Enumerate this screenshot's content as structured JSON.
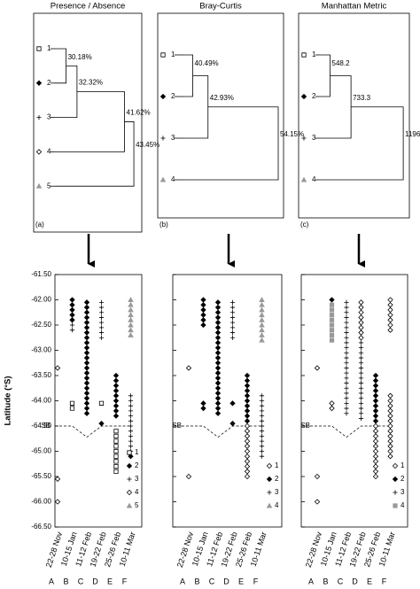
{
  "chart_data": [
    {
      "type": "dendrogram",
      "title": "Presence / Absence",
      "panel_label": "(a)",
      "leaves": [
        "1",
        "2",
        "3",
        "4",
        "5"
      ],
      "leaf_markers": [
        "square",
        "filled-diamond",
        "plus",
        "open-diamond",
        "triangle"
      ],
      "leaf_colors": [
        "#000000",
        "#000000",
        "#000000",
        "#000000",
        "#999999"
      ],
      "values": [
        30.18,
        32.32,
        41.62,
        43.45
      ],
      "value_labels": [
        "30.18%",
        "32.32%",
        "41.62%",
        "43.45%"
      ],
      "xlim": [
        28,
        45
      ]
    },
    {
      "type": "dendrogram",
      "title": "Bray-Curtis",
      "panel_label": "(b)",
      "leaves": [
        "1",
        "2",
        "3",
        "4"
      ],
      "leaf_markers": [
        "square",
        "filled-diamond",
        "plus",
        "triangle"
      ],
      "leaf_colors": [
        "#000000",
        "#000000",
        "#000000",
        "#999999"
      ],
      "values": [
        40.49,
        42.93,
        54.15
      ],
      "value_labels": [
        "40.49%",
        "42.93%",
        "54.15%"
      ],
      "xlim": [
        39,
        55
      ]
    },
    {
      "type": "dendrogram",
      "title": "Manhattan Metric",
      "panel_label": "(c)",
      "leaves": [
        "1",
        "2",
        "3",
        "4"
      ],
      "leaf_markers": [
        "square",
        "filled-diamond",
        "plus",
        "triangle"
      ],
      "leaf_colors": [
        "#000000",
        "#000000",
        "#000000",
        "#999999"
      ],
      "values": [
        548.2,
        733.3,
        1196.0
      ],
      "value_labels": [
        "548.2",
        "733.3",
        "1196.0"
      ],
      "xlim": [
        450,
        1250
      ]
    },
    {
      "type": "strip",
      "ylabel": "Latitude (°S)",
      "ylim": [
        -66.5,
        -61.5
      ],
      "yticks": [
        {
          "value": -61.5,
          "label": "-61.50"
        },
        {
          "value": -62,
          "label": "-62.00"
        },
        {
          "value": -62.5,
          "label": "-62.50"
        },
        {
          "value": -63,
          "label": "-63.00"
        },
        {
          "value": -63.5,
          "label": "-63.50"
        },
        {
          "value": -64,
          "label": "-64.00"
        },
        {
          "value": -64.5,
          "label": "-64.50"
        },
        {
          "value": -65,
          "label": "-65.00"
        },
        {
          "value": -65.5,
          "label": "-65.50"
        },
        {
          "value": -66,
          "label": "-66.00"
        },
        {
          "value": -66.5,
          "label": "-66.50"
        }
      ],
      "categories": [
        "22-28 Nov",
        "10-15 Jan",
        "11-12 Feb",
        "19-22 Feb",
        "25-26 Feb",
        "10-11 Mar"
      ],
      "letters": [
        "A",
        "B",
        "C",
        "D",
        "E",
        "F"
      ],
      "boundary": {
        "label": "SB",
        "values": [
          -64.5,
          -64.5,
          -64.72,
          -64.5,
          -64.5,
          -64.5
        ]
      },
      "legend": "lower right",
      "series": [
        {
          "name": "1",
          "marker": "square",
          "color": "#000000",
          "values": [
            [],
            [
              -64.05,
              -64.15
            ],
            [],
            [
              -64.05
            ],
            [
              -64.6,
              -64.7,
              -64.8,
              -64.9,
              -65.0,
              -65.1,
              -65.2,
              -65.3,
              -65.4
            ],
            []
          ]
        },
        {
          "name": "2",
          "marker": "filled-diamond",
          "color": "#000000",
          "values": [
            [],
            [
              -62.0,
              -62.1,
              -62.2,
              -62.3,
              -62.4
            ],
            [
              -62.05,
              -62.15,
              -62.25,
              -62.35,
              -62.45,
              -62.55,
              -62.65,
              -62.75,
              -62.85,
              -62.95,
              -63.05,
              -63.15,
              -63.25,
              -63.35,
              -63.45,
              -63.55,
              -63.65,
              -63.75,
              -63.85,
              -63.95,
              -64.05,
              -64.15,
              -64.25
            ],
            [
              -64.45
            ],
            [
              -63.5,
              -63.6,
              -63.7,
              -63.8,
              -63.9,
              -64.0,
              -64.1,
              -64.2,
              -64.3
            ],
            [
              -65.1
            ]
          ]
        },
        {
          "name": "3",
          "marker": "plus",
          "color": "#000000",
          "values": [
            [],
            [
              -62.5,
              -62.6
            ],
            [],
            [
              -62.05,
              -62.15,
              -62.25,
              -62.35,
              -62.45,
              -62.55,
              -62.65,
              -62.75
            ],
            [],
            [
              -63.9,
              -64.0,
              -64.1,
              -64.2,
              -64.3,
              -64.4,
              -64.5,
              -64.6,
              -64.7,
              -64.8,
              -64.9,
              -65.0
            ]
          ]
        },
        {
          "name": "4",
          "marker": "open-diamond",
          "color": "#000000",
          "values": [
            [
              -63.35,
              -65.55,
              -66.0
            ],
            [],
            [],
            [],
            [],
            []
          ]
        },
        {
          "name": "5",
          "marker": "triangle",
          "color": "#999999",
          "values": [
            [],
            [],
            [],
            [],
            [],
            [
              -62.0,
              -62.1,
              -62.2,
              -62.3,
              -62.4,
              -62.5,
              -62.6,
              -62.7
            ]
          ]
        }
      ]
    },
    {
      "type": "strip",
      "ylim": [
        -66.5,
        -61.5
      ],
      "yticks": [
        -61.5,
        -62,
        -62.5,
        -63,
        -63.5,
        -64,
        -64.5,
        -65,
        -65.5,
        -66,
        -66.5
      ],
      "categories": [
        "22-28 Nov",
        "10-15 Jan",
        "11-12 Feb",
        "19-22 Feb",
        "25-26 Feb",
        "10-11 Mar"
      ],
      "letters": [
        "A",
        "B",
        "C",
        "D",
        "E",
        "F"
      ],
      "boundary": {
        "label": "SB",
        "values": [
          -64.5,
          -64.5,
          -64.72,
          -64.5,
          -64.5,
          -64.5
        ]
      },
      "legend": "lower right",
      "series": [
        {
          "name": "1",
          "marker": "open-diamond",
          "color": "#000000",
          "values": [
            [
              -63.35,
              -65.5
            ],
            [],
            [],
            [],
            [
              -64.5,
              -64.6,
              -64.7,
              -64.8,
              -64.9,
              -65.0,
              -65.1,
              -65.2,
              -65.3,
              -65.4,
              -65.5
            ],
            []
          ]
        },
        {
          "name": "2",
          "marker": "filled-diamond",
          "color": "#000000",
          "values": [
            [],
            [
              -62.0,
              -62.1,
              -62.2,
              -62.3,
              -62.4,
              -62.5,
              -64.05,
              -64.15
            ],
            [
              -62.05,
              -62.15,
              -62.25,
              -62.35,
              -62.45,
              -62.55,
              -62.65,
              -62.75,
              -62.85,
              -62.95,
              -63.05,
              -63.15,
              -63.25,
              -63.35,
              -63.45,
              -63.55,
              -63.65,
              -63.75,
              -63.85,
              -63.95,
              -64.05,
              -64.15,
              -64.25
            ],
            [
              -64.05,
              -64.45
            ],
            [
              -63.5,
              -63.6,
              -63.7,
              -63.8,
              -63.9,
              -64.0,
              -64.1,
              -64.2,
              -64.3,
              -64.4
            ],
            []
          ]
        },
        {
          "name": "3",
          "marker": "plus",
          "color": "#000000",
          "values": [
            [],
            [],
            [],
            [
              -62.05,
              -62.15,
              -62.25,
              -62.35,
              -62.45,
              -62.55,
              -62.65,
              -62.75
            ],
            [],
            [
              -63.9,
              -64.0,
              -64.1,
              -64.2,
              -64.3,
              -64.4,
              -64.5,
              -64.6,
              -64.7,
              -64.8,
              -64.9,
              -65.0,
              -65.1
            ]
          ]
        },
        {
          "name": "4",
          "marker": "triangle",
          "color": "#999999",
          "values": [
            [],
            [],
            [],
            [],
            [],
            [
              -62.0,
              -62.1,
              -62.2,
              -62.3,
              -62.4,
              -62.5,
              -62.6,
              -62.7,
              -62.8
            ]
          ]
        }
      ]
    },
    {
      "type": "strip",
      "ylim": [
        -66.5,
        -61.5
      ],
      "yticks": [
        -61.5,
        -62,
        -62.5,
        -63,
        -63.5,
        -64,
        -64.5,
        -65,
        -65.5,
        -66,
        -66.5
      ],
      "categories": [
        "22-28 Nov",
        "10-15 Jan",
        "11-12 Feb",
        "19-22 Feb",
        "25-26 Feb",
        "10-11 Mar"
      ],
      "letters": [
        "A",
        "B",
        "C",
        "D",
        "E",
        "F"
      ],
      "boundary": {
        "label": "SB",
        "values": [
          -64.5,
          -64.5,
          -64.72,
          -64.5,
          -64.5,
          -64.5
        ]
      },
      "legend": "lower right",
      "series": [
        {
          "name": "1",
          "marker": "open-diamond",
          "color": "#000000",
          "values": [
            [
              -63.35,
              -65.5,
              -66.0
            ],
            [
              -64.05,
              -64.15
            ],
            [],
            [
              -62.05,
              -62.15,
              -62.25,
              -62.35,
              -62.45,
              -62.55,
              -62.65,
              -62.75
            ],
            [
              -64.5,
              -64.6,
              -64.7,
              -64.8,
              -64.9,
              -65.0,
              -65.1,
              -65.2,
              -65.3,
              -65.4,
              -65.5
            ],
            [
              -62.0,
              -62.1,
              -62.2,
              -62.3,
              -62.4,
              -62.5,
              -62.6,
              -63.9,
              -64.0,
              -64.1,
              -64.2,
              -64.3,
              -64.4,
              -64.5,
              -64.6,
              -64.7,
              -64.8,
              -64.9,
              -65.0,
              -65.1
            ]
          ]
        },
        {
          "name": "2",
          "marker": "filled-diamond",
          "color": "#000000",
          "values": [
            [],
            [
              -62.0
            ],
            [],
            [],
            [
              -63.5,
              -63.6,
              -63.7,
              -63.8,
              -63.9,
              -64.0,
              -64.1,
              -64.2,
              -64.3,
              -64.4
            ],
            []
          ]
        },
        {
          "name": "3",
          "marker": "plus",
          "color": "#000000",
          "values": [
            [],
            [],
            [
              -62.05,
              -62.15,
              -62.25,
              -62.35,
              -62.45,
              -62.55,
              -62.65,
              -62.75,
              -62.85,
              -62.95,
              -63.05,
              -63.15,
              -63.25,
              -63.35,
              -63.45,
              -63.55,
              -63.65,
              -63.75,
              -63.85,
              -63.95,
              -64.05,
              -64.15,
              -64.25
            ],
            [
              -62.85,
              -62.95,
              -63.05,
              -63.15,
              -63.25,
              -63.35,
              -63.45,
              -63.55,
              -63.65,
              -63.75,
              -63.85,
              -63.95,
              -64.05,
              -64.15,
              -64.25,
              -64.35
            ],
            [],
            []
          ]
        },
        {
          "name": "4",
          "marker": "square-gray",
          "color": "#999999",
          "values": [
            [],
            [
              -62.1,
              -62.2,
              -62.3,
              -62.4,
              -62.5,
              -62.6,
              -62.7,
              -62.8
            ],
            [],
            [],
            [],
            []
          ]
        }
      ]
    }
  ]
}
